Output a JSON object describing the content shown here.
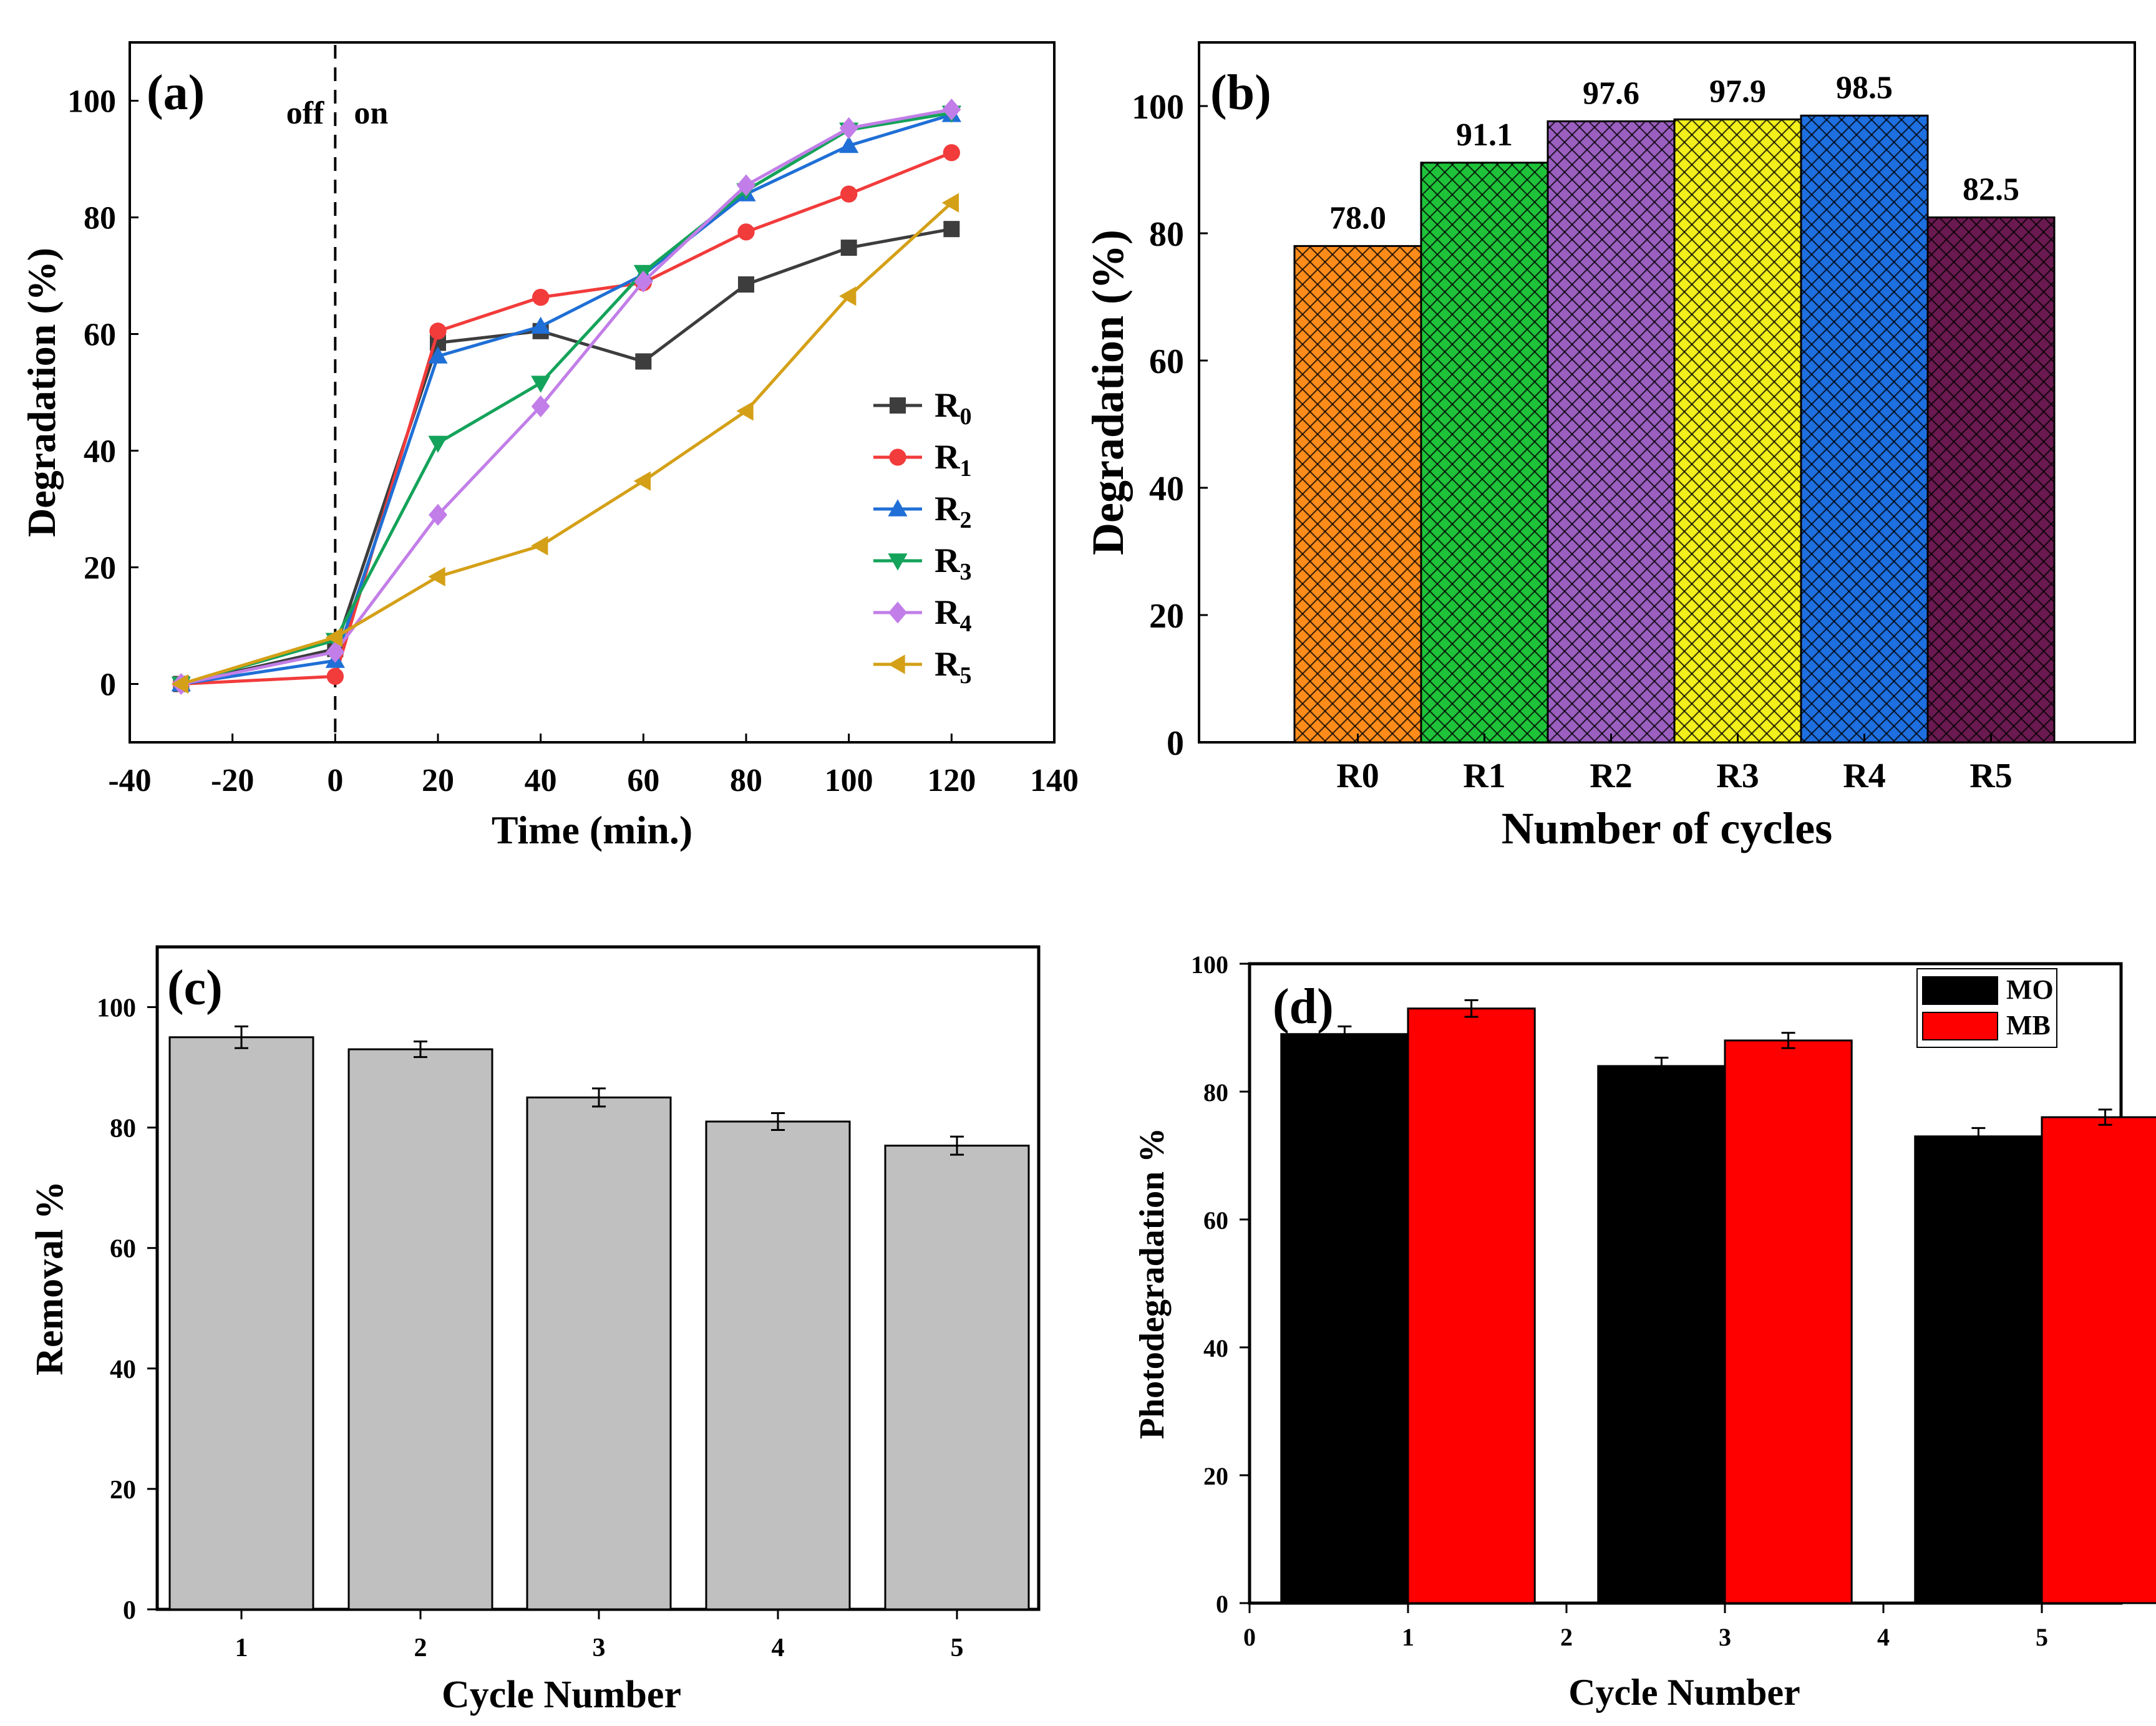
{
  "chart_data": [
    {
      "panel": "(a)",
      "type": "line",
      "xlabel": "Time (min.)",
      "ylabel": "Degradation (%)",
      "xlim": [
        -40,
        140
      ],
      "ylim": [
        -10,
        110
      ],
      "xticks": [
        -40,
        -20,
        0,
        20,
        40,
        60,
        80,
        100,
        120,
        140
      ],
      "yticks": [
        0,
        20,
        40,
        60,
        80,
        100
      ],
      "annotations": [
        "off",
        "on"
      ],
      "legend_placement": "right",
      "x": [
        -30,
        0,
        20,
        40,
        60,
        80,
        100,
        120
      ],
      "series": [
        {
          "name": "R",
          "sub": "0",
          "color": "#3d3d3d",
          "marker": "square",
          "values": [
            0,
            6,
            58.5,
            60.5,
            55.3,
            68.5,
            74.8,
            78.0
          ]
        },
        {
          "name": "R",
          "sub": "1",
          "color": "#f23b3b",
          "marker": "circle",
          "values": [
            0,
            1.3,
            60.5,
            66.3,
            68.8,
            77.5,
            84.0,
            91.1
          ]
        },
        {
          "name": "R",
          "sub": "2",
          "color": "#1f6fd6",
          "marker": "triangle-up",
          "values": [
            0,
            4,
            56.2,
            61.3,
            70.2,
            84.0,
            92.3,
            97.6
          ]
        },
        {
          "name": "R",
          "sub": "3",
          "color": "#14a35a",
          "marker": "triangle-down",
          "values": [
            0,
            7.5,
            41.3,
            51.6,
            70.6,
            84.6,
            95.0,
            97.9
          ]
        },
        {
          "name": "R",
          "sub": "4",
          "color": "#c27ee8",
          "marker": "diamond",
          "values": [
            0,
            5.5,
            29.0,
            47.6,
            69.0,
            85.5,
            95.3,
            98.5
          ]
        },
        {
          "name": "R",
          "sub": "5",
          "color": "#d4a017",
          "marker": "triangle-left",
          "values": [
            0,
            8,
            18.4,
            23.7,
            34.8,
            46.8,
            66.5,
            82.5
          ]
        }
      ]
    },
    {
      "panel": "(b)",
      "type": "bar",
      "xlabel": "Number of cycles",
      "ylabel": "Degradation (%)",
      "ylim": [
        0,
        110
      ],
      "yticks": [
        0,
        20,
        40,
        60,
        80,
        100
      ],
      "categories": [
        "R0",
        "R1",
        "R2",
        "R3",
        "R4",
        "R5"
      ],
      "values": [
        78.0,
        91.1,
        97.6,
        97.9,
        98.5,
        82.5
      ],
      "value_labels": [
        "78.0",
        "91.1",
        "97.6",
        "97.9",
        "98.5",
        "82.5"
      ],
      "colors": [
        "#ff8c1a",
        "#1fc33a",
        "#9b5fc0",
        "#f2ef1c",
        "#1e6fe0",
        "#6a1a50"
      ]
    },
    {
      "panel": "(c)",
      "type": "bar",
      "xlabel": "Cycle Number",
      "ylabel": "Removal %",
      "ylim": [
        0,
        110
      ],
      "yticks": [
        0,
        20,
        40,
        60,
        80,
        100
      ],
      "categories": [
        "1",
        "2",
        "3",
        "4",
        "5"
      ],
      "values": [
        95,
        93,
        85,
        81,
        77
      ],
      "errors": [
        1.8,
        1.3,
        1.5,
        1.4,
        1.5
      ],
      "color": "#c0c0c0"
    },
    {
      "panel": "(d)",
      "type": "bar",
      "xlabel": "Cycle Number",
      "ylabel": "Photodegradation %",
      "xlim": [
        0,
        5.5
      ],
      "xticks": [
        "0",
        "1",
        "2",
        "3",
        "4",
        "5"
      ],
      "ylim": [
        0,
        100
      ],
      "yticks": [
        0,
        20,
        40,
        60,
        80,
        100
      ],
      "legend_placement": "top-right",
      "groups": [
        1,
        3,
        5
      ],
      "series": [
        {
          "name": "MO",
          "color": "#000000",
          "values": [
            89,
            84,
            73
          ],
          "errors": [
            1.2,
            1.3,
            1.3
          ]
        },
        {
          "name": "MB",
          "color": "#ff0000",
          "values": [
            93,
            88,
            76
          ],
          "errors": [
            1.3,
            1.2,
            1.2
          ]
        }
      ]
    }
  ]
}
